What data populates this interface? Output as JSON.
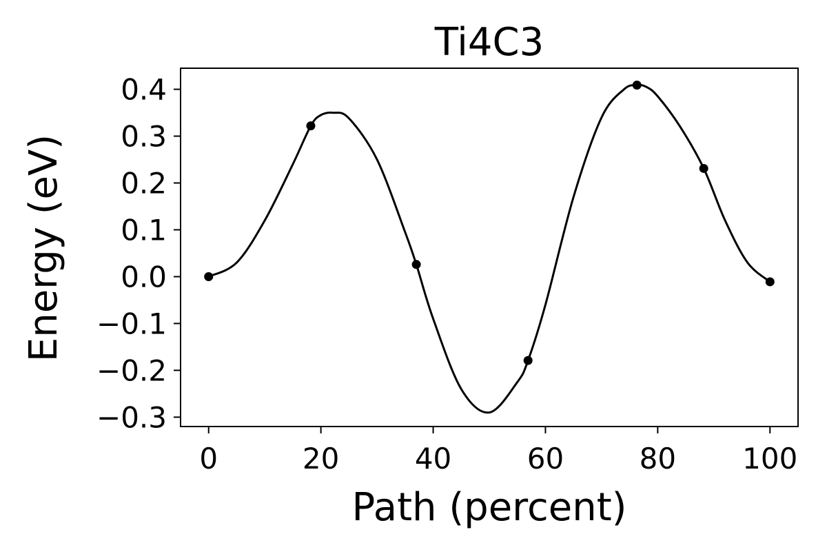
{
  "chart_data": {
    "type": "line",
    "title": "Ti4C3",
    "xlabel": "Path (percent)",
    "ylabel": "Energy (eV)",
    "xlim": [
      -5,
      105
    ],
    "ylim": [
      -0.32,
      0.445
    ],
    "xticks": [
      0,
      20,
      40,
      60,
      80,
      100
    ],
    "xtick_labels": [
      "0",
      "20",
      "40",
      "60",
      "80",
      "100"
    ],
    "yticks": [
      -0.3,
      -0.2,
      -0.1,
      0.0,
      0.1,
      0.2,
      0.3,
      0.4
    ],
    "ytick_labels": [
      "−0.3",
      "−0.2",
      "−0.1",
      "0.0",
      "0.1",
      "0.2",
      "0.3",
      "0.4"
    ],
    "grid": false,
    "line_color": "#000000",
    "series": [
      {
        "points": {
          "x": [
            0,
            18.2,
            37.0,
            56.9,
            76.3,
            88.2,
            100
          ],
          "y": [
            0.0,
            0.322,
            0.026,
            -0.179,
            0.409,
            0.231,
            -0.011
          ]
        },
        "curve": {
          "x": [
            0,
            5,
            10,
            15,
            18.2,
            20,
            22.2,
            25,
            30,
            35,
            37,
            40,
            45,
            50,
            55,
            56.9,
            60,
            65,
            70,
            74,
            76.3,
            78,
            80,
            84,
            88.2,
            92,
            96,
            100
          ],
          "y": [
            0.0,
            0.03,
            0.12,
            0.24,
            0.322,
            0.345,
            0.35,
            0.338,
            0.25,
            0.095,
            0.026,
            -0.09,
            -0.24,
            -0.29,
            -0.225,
            -0.179,
            -0.06,
            0.17,
            0.34,
            0.4,
            0.409,
            0.405,
            0.385,
            0.32,
            0.231,
            0.12,
            0.03,
            -0.011
          ]
        }
      }
    ]
  }
}
